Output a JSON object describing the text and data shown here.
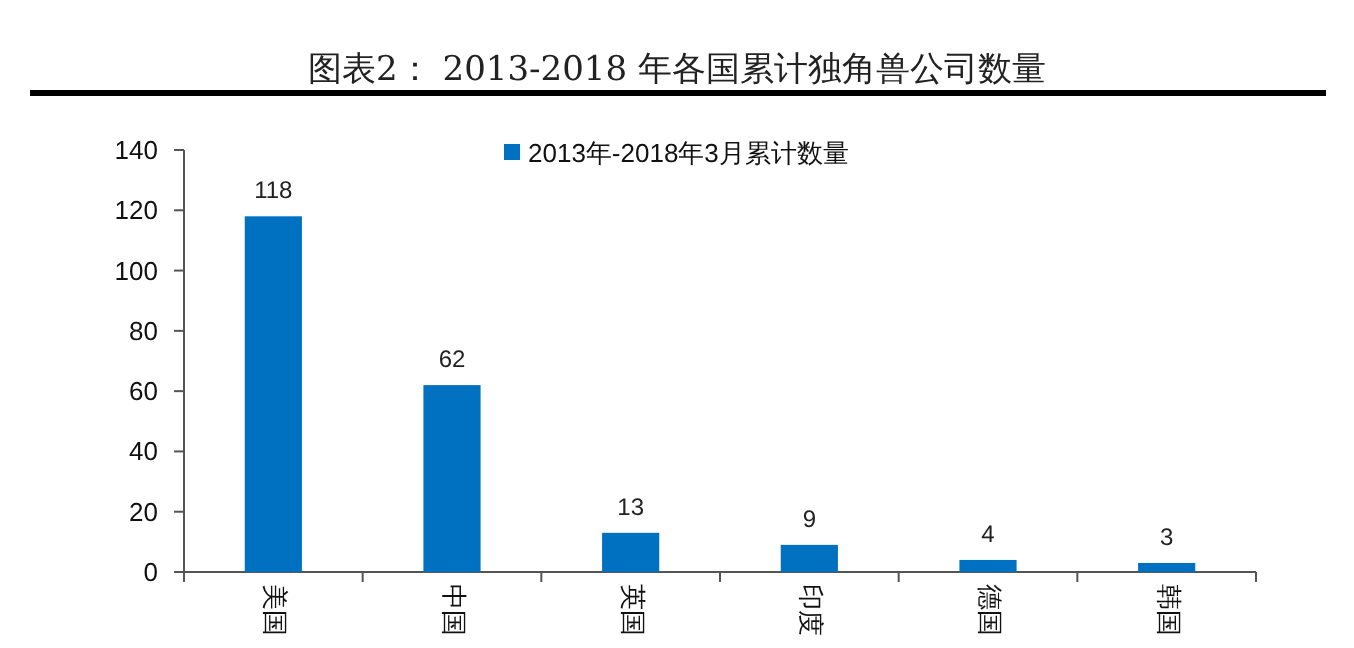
{
  "chart_data": {
    "type": "bar",
    "title": "图表2： 2013-2018 年各国累计独角兽公司数量",
    "categories": [
      "美国",
      "中国",
      "英国",
      "印度",
      "德国",
      "韩国"
    ],
    "series": [
      {
        "name": "2013年-2018年3月累计数量",
        "color": "#0070c0",
        "values": [
          118,
          62,
          13,
          9,
          4,
          3
        ]
      }
    ],
    "ylim": [
      0,
      140
    ],
    "yticks": [
      0,
      20,
      40,
      60,
      80,
      100,
      120,
      140
    ],
    "data_labels": true,
    "legend": "top",
    "grid": false
  }
}
